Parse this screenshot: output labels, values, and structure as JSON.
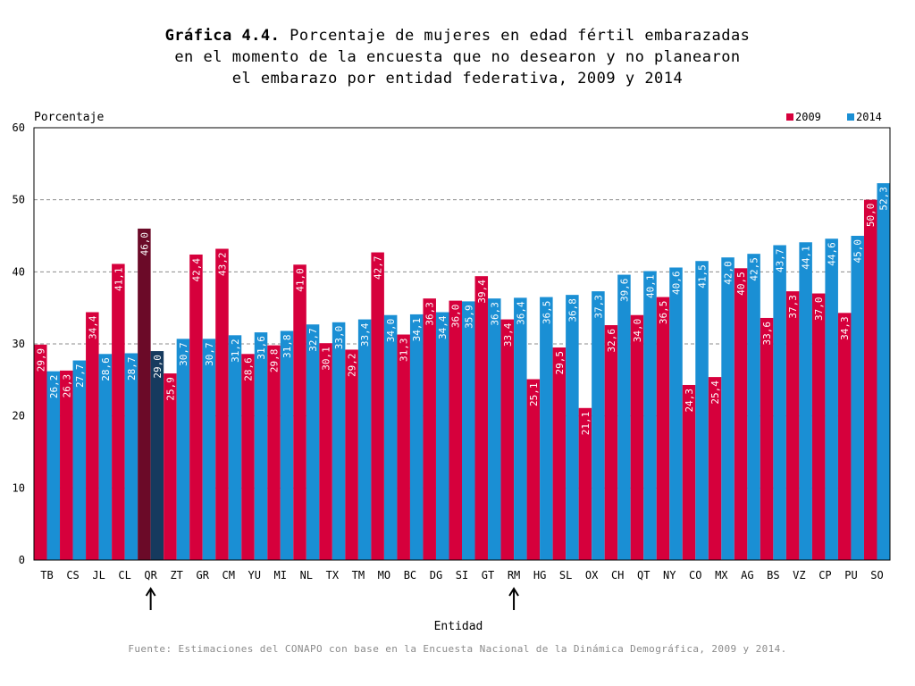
{
  "title": {
    "label": "Gráfica 4.4.",
    "line1_rest": "Porcentaje de mujeres en edad fértil embarazadas",
    "line2": "en el momento de la encuesta que no desearon y no planearon",
    "line3": "el embarazo por entidad federativa, 2009 y 2014"
  },
  "source": "Fuente: Estimaciones del CONAPO con base en la Encuesta Nacional de la Dinámica Demográfica, 2009 y 2014.",
  "chart_data": {
    "type": "bar",
    "ylabel": "Porcentaje",
    "xlabel": "Entidad",
    "ylim": [
      0,
      60
    ],
    "yticks": [
      0,
      10,
      20,
      30,
      40,
      50,
      60
    ],
    "grid": "horizontal dashed",
    "legend_position": "top-right",
    "categories": [
      "TB",
      "CS",
      "JL",
      "CL",
      "QR",
      "ZT",
      "GR",
      "CM",
      "YU",
      "MI",
      "NL",
      "TX",
      "TM",
      "MO",
      "BC",
      "DG",
      "SI",
      "GT",
      "RM",
      "HG",
      "SL",
      "OX",
      "CH",
      "QT",
      "NY",
      "CO",
      "MX",
      "AG",
      "BS",
      "VZ",
      "CP",
      "PU",
      "SO"
    ],
    "series": [
      {
        "name": "2009",
        "color": "#d6003c",
        "values": [
          29.9,
          26.3,
          34.4,
          41.1,
          46.0,
          25.9,
          42.4,
          43.2,
          28.6,
          29.8,
          41.0,
          30.1,
          29.2,
          42.7,
          31.3,
          36.3,
          36.0,
          39.4,
          33.4,
          25.1,
          29.5,
          21.1,
          32.6,
          34.0,
          36.5,
          24.3,
          25.4,
          40.5,
          33.6,
          37.3,
          37.0,
          34.3,
          50.0
        ],
        "labels": [
          "29,9",
          "26,3",
          "34,4",
          "41,1",
          "46,0",
          "25,9",
          "42,4",
          "43,2",
          "28,6",
          "29,8",
          "41,0",
          "30,1",
          "29,2",
          "42,7",
          "31,3",
          "36,3",
          "36,0",
          "39,4",
          "33,4",
          "25,1",
          "29,5",
          "21,1",
          "32,6",
          "34,0",
          "36,5",
          "24,3",
          "25,4",
          "40,5",
          "33,6",
          "37,3",
          "37,0",
          "34,3",
          "50,0"
        ]
      },
      {
        "name": "2014",
        "color": "#1a8fd4",
        "values": [
          26.2,
          27.7,
          28.6,
          28.7,
          29.0,
          30.7,
          30.7,
          31.2,
          31.6,
          31.8,
          32.7,
          33.0,
          33.4,
          34.0,
          34.1,
          34.4,
          35.9,
          36.3,
          36.4,
          36.5,
          36.8,
          37.3,
          39.6,
          40.1,
          40.6,
          41.5,
          42.0,
          42.5,
          43.7,
          44.1,
          44.6,
          45.0,
          52.3
        ],
        "labels": [
          "26,2",
          "27,7",
          "28,6",
          "28,7",
          "29,0",
          "30,7",
          "30,7",
          "31,2",
          "31,6",
          "31,8",
          "32,7",
          "33,0",
          "33,4",
          "34,0",
          "34,1",
          "34,4",
          "35,9",
          "36,3",
          "36,4",
          "36,5",
          "36,8",
          "37,3",
          "39,6",
          "40,1",
          "40,6",
          "41,5",
          "42,0",
          "42,5",
          "43,7",
          "44,1",
          "44,6",
          "45,0",
          "52,3"
        ]
      }
    ],
    "highlight": {
      "category": "QR",
      "colors": [
        "#6b0a28",
        "#163a5e"
      ]
    },
    "arrows": [
      "QR",
      "RM"
    ]
  }
}
